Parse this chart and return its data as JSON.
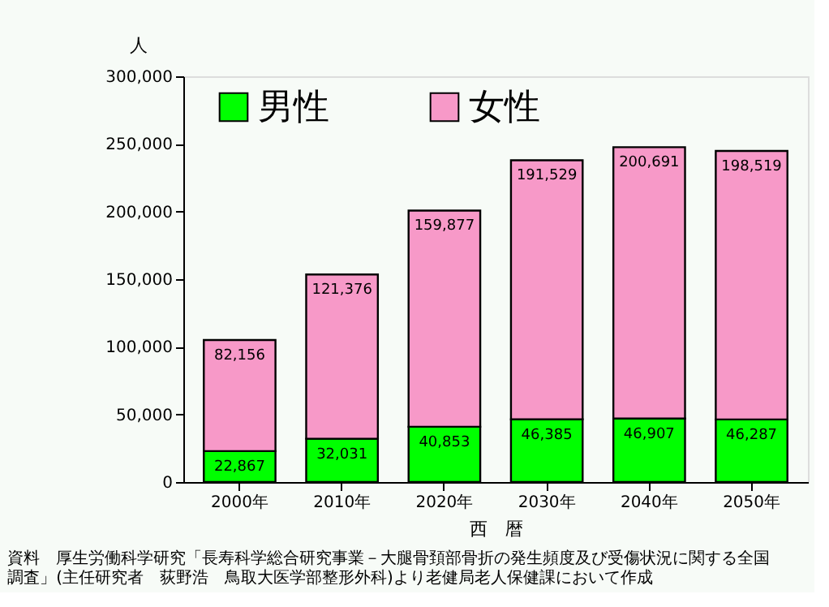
{
  "chart_data": {
    "type": "bar",
    "stacked": true,
    "ylabel": "人",
    "xlabel": "西　暦",
    "categories": [
      "2000年",
      "2010年",
      "2020年",
      "2030年",
      "2040年",
      "2050年"
    ],
    "series": [
      {
        "name": "男性",
        "color": "#00ff00",
        "values": [
          22867,
          32031,
          40853,
          46385,
          46907,
          46287
        ],
        "value_labels": [
          "22,867",
          "32,031",
          "40,853",
          "46,385",
          "46,907",
          "46,287"
        ]
      },
      {
        "name": "女性",
        "color": "#f799c8",
        "values": [
          82156,
          121376,
          159877,
          191529,
          200691,
          198519
        ],
        "value_labels": [
          "82,156",
          "121,376",
          "159,877",
          "191,529",
          "200,691",
          "198,519"
        ]
      }
    ],
    "ylim": [
      0,
      300000
    ],
    "yticks": [
      {
        "value": 0,
        "label": "0"
      },
      {
        "value": 50000,
        "label": "50,000"
      },
      {
        "value": 100000,
        "label": "100,000"
      },
      {
        "value": 150000,
        "label": "150,000"
      },
      {
        "value": 200000,
        "label": "200,000"
      },
      {
        "value": 250000,
        "label": "250,000"
      },
      {
        "value": 300000,
        "label": "300,000"
      }
    ],
    "grid": false,
    "legend": "top left",
    "annotations": [
      "資料　厚生労働科学研究「長寿科学総合研究事業－大腿骨頚部骨折の発生頻度及び受傷状況に関する全国",
      "調査」(主任研究者　荻野浩　鳥取大医学部整形外科)より老健局老人保健課において作成"
    ]
  }
}
